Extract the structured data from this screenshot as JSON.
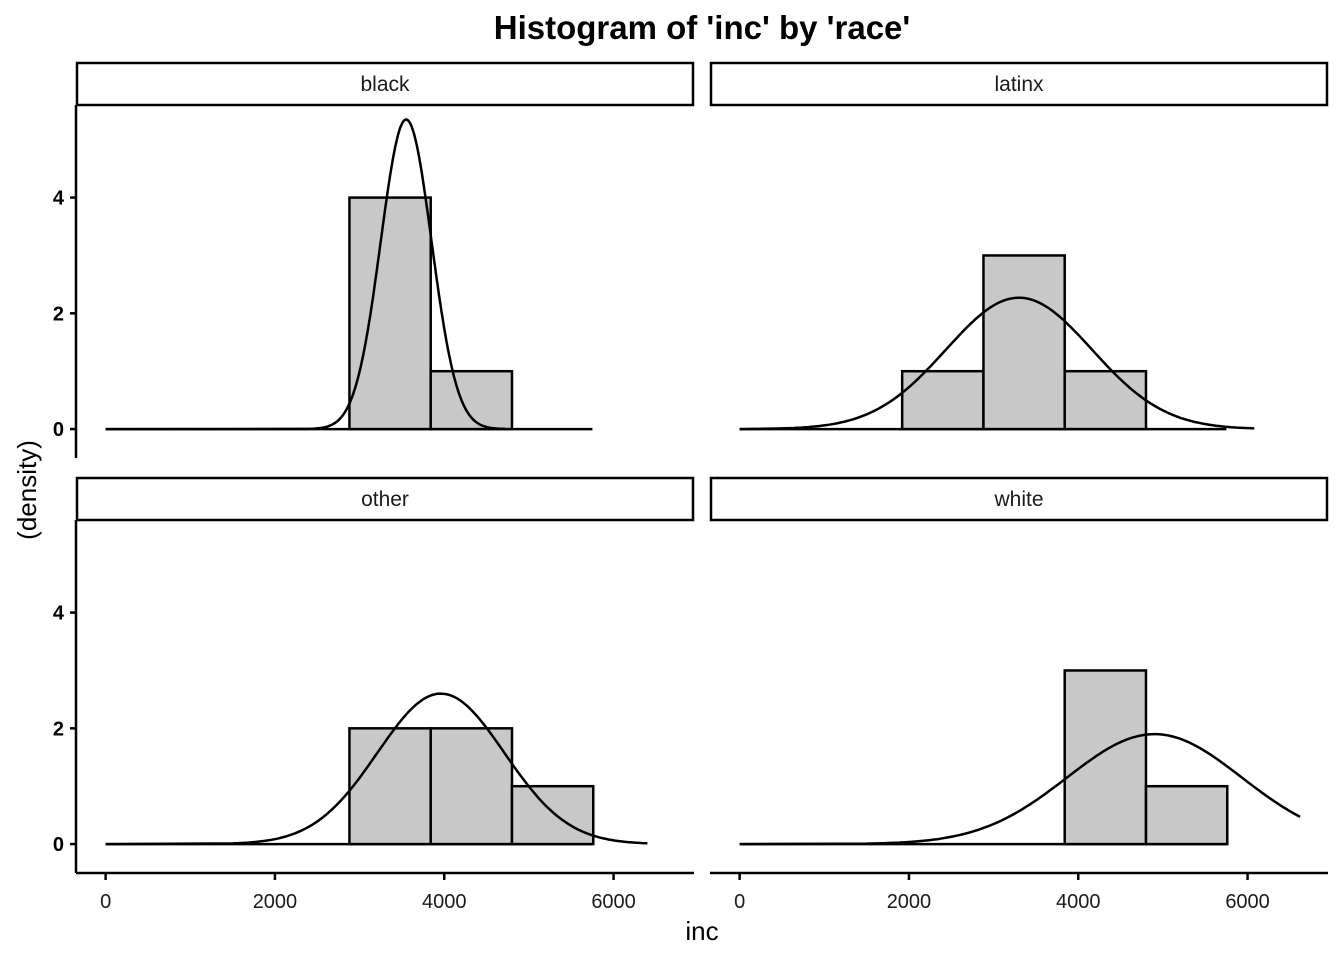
{
  "chart_data": {
    "type": "bar",
    "title": "Histogram of 'inc' by 'race'",
    "xlabel": "inc",
    "ylabel": "(density)",
    "xlim": [
      -350,
      6950
    ],
    "ylim": [
      -0.5,
      5.6
    ],
    "x_ticks": [
      0,
      2000,
      4000,
      6000
    ],
    "x_tick_labels": [
      "0",
      "2000",
      "4000",
      "6000"
    ],
    "y_ticks": [
      0,
      2,
      4
    ],
    "y_tick_labels": [
      "0",
      "2",
      "4"
    ],
    "grid": false,
    "bin_edges": [
      0,
      960,
      1920,
      2880,
      3840,
      4800,
      5760
    ],
    "colors": {
      "bar_fill": "#c8c8c8",
      "bar_stroke": "#000000",
      "curve": "#000000",
      "strip_fill": "#ffffff"
    },
    "panels": [
      {
        "label": "black",
        "bins": [
          {
            "x0": 2880,
            "x1": 3840,
            "value": 4
          },
          {
            "x0": 3840,
            "x1": 4800,
            "value": 1
          }
        ],
        "curve": {
          "mean": 3550,
          "sd": 300,
          "peak": 5.35,
          "from": 2360,
          "to": 4720
        },
        "baseline_to": 5750
      },
      {
        "label": "latinx",
        "bins": [
          {
            "x0": 1920,
            "x1": 2880,
            "value": 1
          },
          {
            "x0": 2880,
            "x1": 3840,
            "value": 3
          },
          {
            "x0": 3840,
            "x1": 4800,
            "value": 1
          }
        ],
        "curve": {
          "mean": 3300,
          "sd": 860,
          "peak": 2.27,
          "from": 500,
          "to": 6080
        },
        "baseline_to": 5750
      },
      {
        "label": "other",
        "bins": [
          {
            "x0": 2880,
            "x1": 3840,
            "value": 2
          },
          {
            "x0": 3840,
            "x1": 4800,
            "value": 2
          },
          {
            "x0": 4800,
            "x1": 5760,
            "value": 1
          }
        ],
        "curve": {
          "mean": 3960,
          "sd": 750,
          "peak": 2.6,
          "from": 1500,
          "to": 6400
        },
        "baseline_to": 5750
      },
      {
        "label": "white",
        "bins": [
          {
            "x0": 3840,
            "x1": 4800,
            "value": 3
          },
          {
            "x0": 4800,
            "x1": 5760,
            "value": 1
          }
        ],
        "curve": {
          "mean": 4900,
          "sd": 1030,
          "peak": 1.9,
          "from": 1500,
          "to": 6620
        },
        "baseline_to": 5750
      }
    ]
  }
}
